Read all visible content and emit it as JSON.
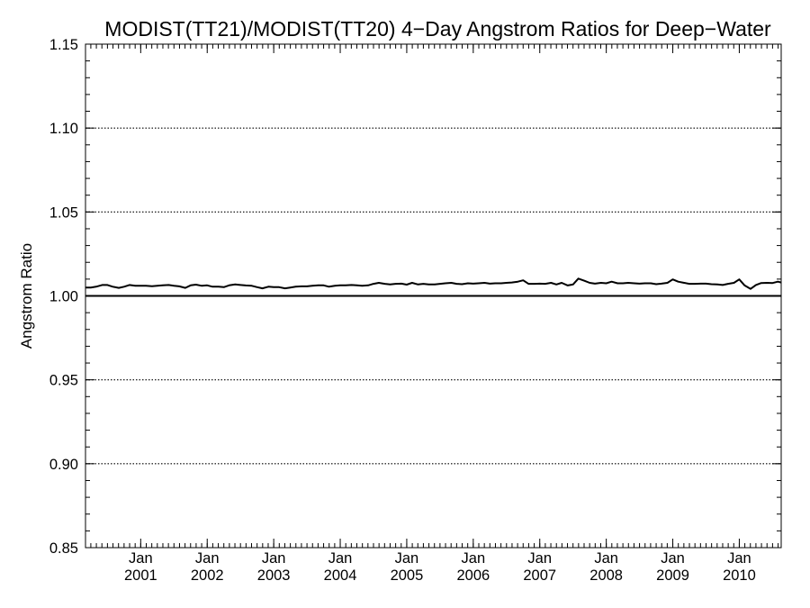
{
  "chart_data": {
    "type": "line",
    "title": "MODIST(TT21)/MODIST(TT20) 4−Day Angstrom Ratios for Deep−Water",
    "xlabel": "",
    "ylabel": "Angstrom Ratio",
    "xlim": [
      2000.17,
      2010.63
    ],
    "ylim": [
      0.85,
      1.15
    ],
    "yticks": [
      0.85,
      0.9,
      0.95,
      1.0,
      1.05,
      1.1,
      1.15
    ],
    "ytick_labels": [
      "0.85",
      "0.90",
      "0.95",
      "1.00",
      "1.05",
      "1.10",
      "1.15"
    ],
    "xticks": [
      {
        "value": 2001,
        "line1": "Jan",
        "line2": "2001"
      },
      {
        "value": 2002,
        "line1": "Jan",
        "line2": "2002"
      },
      {
        "value": 2003,
        "line1": "Jan",
        "line2": "2003"
      },
      {
        "value": 2004,
        "line1": "Jan",
        "line2": "2004"
      },
      {
        "value": 2005,
        "line1": "Jan",
        "line2": "2005"
      },
      {
        "value": 2006,
        "line1": "Jan",
        "line2": "2006"
      },
      {
        "value": 2007,
        "line1": "Jan",
        "line2": "2007"
      },
      {
        "value": 2008,
        "line1": "Jan",
        "line2": "2008"
      },
      {
        "value": 2009,
        "line1": "Jan",
        "line2": "2009"
      },
      {
        "value": 2010,
        "line1": "Jan",
        "line2": "2010"
      }
    ],
    "grid": "horizontal dotted",
    "reference_line": 1.0,
    "series": [
      {
        "x": [
          2000.17,
          2000.25,
          2000.33,
          2000.42,
          2000.5,
          2000.58,
          2000.67,
          2000.75,
          2000.83,
          2000.92,
          2001.0,
          2001.08,
          2001.17,
          2001.25,
          2001.33,
          2001.42,
          2001.5,
          2001.58,
          2001.67,
          2001.75,
          2001.83,
          2001.92,
          2002.0,
          2002.08,
          2002.17,
          2002.25,
          2002.33,
          2002.42,
          2002.5,
          2002.58,
          2002.67,
          2002.75,
          2002.83,
          2002.92,
          2003.0,
          2003.08,
          2003.17,
          2003.25,
          2003.33,
          2003.42,
          2003.5,
          2003.58,
          2003.67,
          2003.75,
          2003.83,
          2003.92,
          2004.0,
          2004.08,
          2004.17,
          2004.25,
          2004.33,
          2004.42,
          2004.5,
          2004.58,
          2004.67,
          2004.75,
          2004.83,
          2004.92,
          2005.0,
          2005.08,
          2005.17,
          2005.25,
          2005.33,
          2005.42,
          2005.5,
          2005.58,
          2005.67,
          2005.75,
          2005.83,
          2005.92,
          2006.0,
          2006.08,
          2006.17,
          2006.25,
          2006.33,
          2006.42,
          2006.5,
          2006.58,
          2006.67,
          2006.75,
          2006.83,
          2006.92,
          2007.0,
          2007.08,
          2007.17,
          2007.25,
          2007.33,
          2007.42,
          2007.5,
          2007.58,
          2007.67,
          2007.75,
          2007.83,
          2007.92,
          2008.0,
          2008.08,
          2008.17,
          2008.25,
          2008.33,
          2008.42,
          2008.5,
          2008.58,
          2008.67,
          2008.75,
          2008.83,
          2008.92,
          2009.0,
          2009.08,
          2009.17,
          2009.25,
          2009.33,
          2009.42,
          2009.5,
          2009.58,
          2009.67,
          2009.75,
          2009.83,
          2009.92,
          2010.0,
          2010.08,
          2010.17,
          2010.25,
          2010.33,
          2010.42,
          2010.5,
          2010.58,
          2010.63
        ],
        "y": [
          1.005,
          1.005,
          1.0055,
          1.0065,
          1.0065,
          1.0055,
          1.0048,
          1.0055,
          1.0065,
          1.006,
          1.006,
          1.006,
          1.0058,
          1.006,
          1.0063,
          1.0065,
          1.006,
          1.0057,
          1.0048,
          1.0063,
          1.0067,
          1.006,
          1.0063,
          1.0055,
          1.0055,
          1.0052,
          1.0063,
          1.0068,
          1.0065,
          1.0062,
          1.006,
          1.0052,
          1.0045,
          1.0055,
          1.0052,
          1.0052,
          1.0045,
          1.005,
          1.0055,
          1.0057,
          1.0057,
          1.006,
          1.0063,
          1.0063,
          1.0055,
          1.006,
          1.0063,
          1.0063,
          1.0065,
          1.0063,
          1.006,
          1.0063,
          1.0072,
          1.0078,
          1.0072,
          1.0068,
          1.0072,
          1.0073,
          1.0067,
          1.0078,
          1.0068,
          1.0072,
          1.0068,
          1.0068,
          1.0072,
          1.0075,
          1.0078,
          1.0072,
          1.007,
          1.0075,
          1.0073,
          1.0075,
          1.0078,
          1.0073,
          1.0075,
          1.0075,
          1.0078,
          1.008,
          1.0085,
          1.0093,
          1.0072,
          1.0072,
          1.0073,
          1.0072,
          1.0078,
          1.0068,
          1.0078,
          1.0062,
          1.0068,
          1.0103,
          1.009,
          1.0078,
          1.0073,
          1.0078,
          1.0075,
          1.0085,
          1.0075,
          1.0075,
          1.0078,
          1.0075,
          1.0073,
          1.0075,
          1.0075,
          1.007,
          1.0073,
          1.0078,
          1.0098,
          1.0085,
          1.0078,
          1.0072,
          1.0072,
          1.0073,
          1.0073,
          1.007,
          1.0068,
          1.0065,
          1.0072,
          1.0078,
          1.0098,
          1.0062,
          1.0042,
          1.0065,
          1.0077,
          1.0078,
          1.0077,
          1.0085,
          1.008
        ]
      }
    ]
  }
}
